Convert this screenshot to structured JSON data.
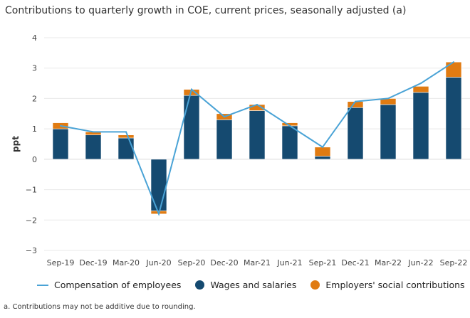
{
  "title": "Contributions to quarterly growth in COE, current prices, seasonally adjusted (a)",
  "footnote": "a. Contributions may not be additive due to rounding.",
  "chart_data": {
    "type": "bar",
    "stacked": true,
    "title": "Contributions to quarterly growth in COE, current prices, seasonally adjusted (a)",
    "xlabel": "",
    "ylabel": "ppt",
    "ylim": [
      -3,
      4
    ],
    "yticks": [
      4,
      3,
      2,
      1,
      0,
      -1,
      -2,
      -3
    ],
    "grid": true,
    "legend_position": "bottom",
    "categories": [
      "Sep-19",
      "Dec-19",
      "Mar-20",
      "Jun-20",
      "Sep-20",
      "Dec-20",
      "Mar-21",
      "Jun-21",
      "Sep-21",
      "Dec-21",
      "Mar-22",
      "Jun-22",
      "Sep-22"
    ],
    "series": [
      {
        "name": "Compensation of employees",
        "type": "line",
        "color": "#4aa3d6",
        "values": [
          1.1,
          0.9,
          0.9,
          -1.8,
          2.3,
          1.4,
          1.8,
          1.1,
          0.4,
          1.9,
          2.0,
          2.5,
          3.2
        ]
      },
      {
        "name": "Wages and salaries",
        "type": "bar",
        "color": "#154a70",
        "values": [
          1.0,
          0.8,
          0.7,
          -1.7,
          2.1,
          1.3,
          1.6,
          1.1,
          0.1,
          1.7,
          1.8,
          2.2,
          2.7
        ]
      },
      {
        "name": "Employers' social contributions",
        "type": "bar",
        "color": "#e07b12",
        "values": [
          0.2,
          0.1,
          0.1,
          -0.1,
          0.2,
          0.2,
          0.2,
          0.1,
          0.3,
          0.2,
          0.2,
          0.2,
          0.5
        ]
      }
    ]
  }
}
